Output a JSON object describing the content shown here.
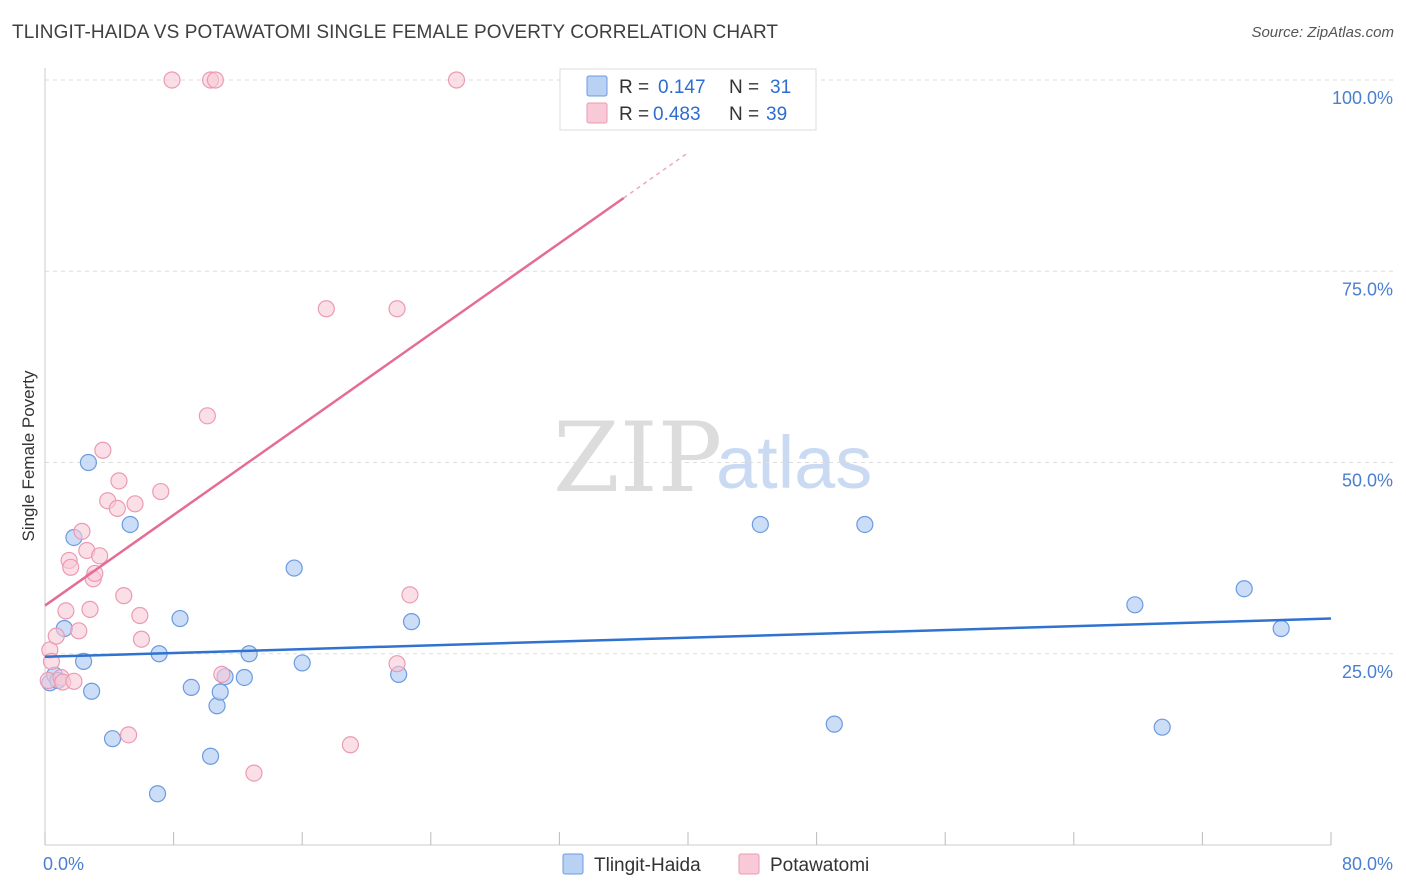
{
  "header": {
    "title": "TLINGIT-HAIDA VS POTAWATOMI SINGLE FEMALE POVERTY CORRELATION CHART",
    "source": "Source: ZipAtlas.com"
  },
  "colors": {
    "tlingit_fill": "#b9d2f4",
    "tlingit_stroke": "#6b9be0",
    "tlingit_line": "#2f72d0",
    "potawatomi_fill": "#f8c9d7",
    "potawatomi_stroke": "#ec9ab3",
    "potawatomi_line": "#e46c96",
    "tick": "#4a7fd0",
    "grid": "#dddddd"
  },
  "legend": {
    "rows": [
      {
        "r_label": "R =",
        "r_value": "0.147",
        "n_label": "N =",
        "n_value": "31"
      },
      {
        "r_label": "R =",
        "r_value": "0.483",
        "n_label": "N =",
        "n_value": "39"
      }
    ]
  },
  "bottom_legend": [
    "Tlingit-Haida",
    "Potawatomi"
  ],
  "watermark": {
    "zip": "ZIP",
    "atlas": "atlas"
  },
  "chart_data": {
    "type": "scatter",
    "title": "TLINGIT-HAIDA VS POTAWATOMI SINGLE FEMALE POVERTY CORRELATION CHART",
    "xlabel": "",
    "ylabel": "Single Female Poverty",
    "xlim": [
      0,
      80
    ],
    "ylim": [
      0,
      100
    ],
    "x_tick_labels": [
      "0.0%",
      "80.0%"
    ],
    "y_ticks": [
      25,
      50,
      75,
      100
    ],
    "y_tick_labels": [
      "25.0%",
      "50.0%",
      "75.0%",
      "100.0%"
    ],
    "grid": true,
    "series": [
      {
        "name": "Tlingit-Haida",
        "r": 0.147,
        "n": 31,
        "trend": {
          "x": [
            0,
            80
          ],
          "y": [
            24.6,
            29.6
          ]
        },
        "points": [
          [
            0.3,
            21.2
          ],
          [
            0.6,
            22.2
          ],
          [
            0.8,
            21.5
          ],
          [
            1.2,
            28.3
          ],
          [
            1.8,
            40.2
          ],
          [
            2.4,
            24.0
          ],
          [
            2.7,
            50.0
          ],
          [
            2.9,
            20.1
          ],
          [
            4.2,
            13.9
          ],
          [
            5.3,
            41.9
          ],
          [
            7.0,
            6.7
          ],
          [
            7.1,
            25.0
          ],
          [
            8.4,
            29.6
          ],
          [
            9.1,
            20.6
          ],
          [
            10.3,
            11.6
          ],
          [
            10.7,
            18.2
          ],
          [
            10.9,
            20.0
          ],
          [
            11.2,
            22.0
          ],
          [
            12.4,
            21.9
          ],
          [
            12.7,
            25.0
          ],
          [
            15.5,
            36.2
          ],
          [
            16.0,
            23.8
          ],
          [
            22.0,
            22.3
          ],
          [
            22.8,
            29.2
          ],
          [
            44.5,
            41.9
          ],
          [
            49.1,
            15.8
          ],
          [
            51.0,
            41.9
          ],
          [
            67.8,
            31.4
          ],
          [
            69.5,
            15.4
          ],
          [
            74.6,
            33.5
          ],
          [
            76.9,
            28.3
          ]
        ]
      },
      {
        "name": "Potawatomi",
        "r": 0.483,
        "n": 39,
        "trend": {
          "x": [
            0,
            40
          ],
          "y": [
            31.3,
            90.5
          ]
        },
        "points": [
          [
            0.2,
            21.5
          ],
          [
            0.3,
            25.5
          ],
          [
            0.4,
            24.0
          ],
          [
            0.7,
            27.3
          ],
          [
            1.0,
            21.9
          ],
          [
            1.1,
            21.3
          ],
          [
            1.3,
            30.6
          ],
          [
            1.5,
            37.2
          ],
          [
            1.6,
            36.3
          ],
          [
            1.8,
            21.4
          ],
          [
            2.1,
            28.0
          ],
          [
            2.3,
            41.0
          ],
          [
            2.6,
            38.5
          ],
          [
            2.8,
            30.8
          ],
          [
            3.0,
            34.8
          ],
          [
            3.1,
            35.5
          ],
          [
            3.4,
            37.8
          ],
          [
            3.6,
            51.6
          ],
          [
            3.9,
            45.0
          ],
          [
            4.5,
            44.0
          ],
          [
            4.6,
            47.6
          ],
          [
            4.9,
            32.6
          ],
          [
            5.2,
            14.4
          ],
          [
            5.6,
            44.6
          ],
          [
            5.9,
            30.0
          ],
          [
            6.0,
            26.9
          ],
          [
            7.2,
            46.2
          ],
          [
            7.9,
            100.0
          ],
          [
            10.1,
            56.1
          ],
          [
            10.3,
            100.0
          ],
          [
            10.6,
            100.0
          ],
          [
            11.0,
            22.3
          ],
          [
            13.0,
            9.4
          ],
          [
            17.5,
            70.1
          ],
          [
            19.0,
            13.1
          ],
          [
            21.9,
            23.7
          ],
          [
            21.9,
            70.1
          ],
          [
            22.7,
            32.7
          ],
          [
            25.6,
            100.0
          ]
        ]
      }
    ]
  }
}
